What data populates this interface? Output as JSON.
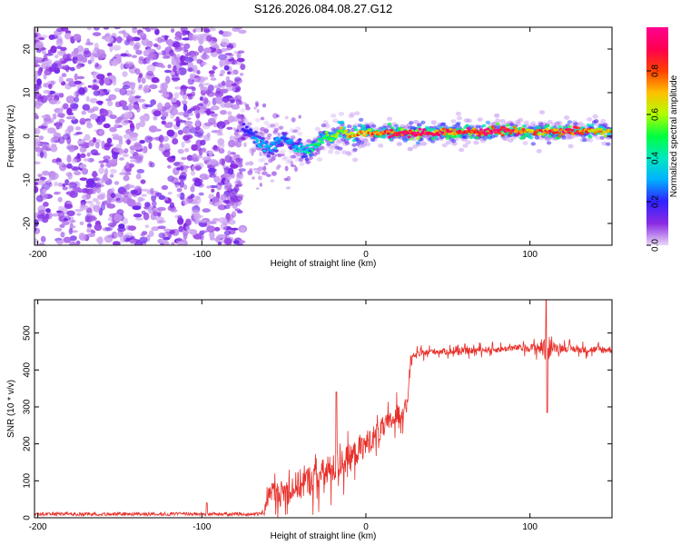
{
  "chart_data": [
    {
      "type": "heatmap",
      "title": "S126.2026.084.08.27.G12",
      "xlabel": "Height of straight line (km)",
      "ylabel": "Frequency (Hz)",
      "xlim": [
        -202,
        150
      ],
      "ylim": [
        -25,
        25
      ],
      "xticks": [
        -200,
        -100,
        0,
        100
      ],
      "yticks": [
        -20,
        -10,
        0,
        10,
        20
      ],
      "grid": false,
      "colorbar": {
        "label": "Normalized spectral amplitude",
        "range": [
          0.0,
          1.0
        ],
        "ticks": [
          0.0,
          0.2,
          0.4,
          0.6,
          0.8
        ],
        "tick_labels": [
          "0.0",
          "0.2",
          "0.4",
          "0.6",
          "0.8"
        ],
        "colors": [
          "#e8d8f8",
          "#8a2be2",
          "#3020ff",
          "#00b0ff",
          "#00e8c0",
          "#00ff40",
          "#b0ff00",
          "#ffc000",
          "#ff4000",
          "#ff0050",
          "#ff0090"
        ]
      },
      "noise_region_x": [
        -202,
        -75
      ],
      "signal_track": {
        "x": [
          -75,
          -70,
          -65,
          -60,
          -55,
          -50,
          -45,
          -40,
          -35,
          -30,
          -25,
          -20,
          -15,
          -10,
          -5,
          0,
          10,
          20,
          30,
          40,
          50,
          60,
          70,
          80,
          90,
          100,
          110,
          120,
          130,
          140,
          150
        ],
        "y": [
          2.0,
          1.0,
          -1.5,
          -2.5,
          -1.5,
          -0.5,
          -2.0,
          -3.0,
          -3.5,
          -1.5,
          0.0,
          -0.5,
          1.5,
          0.0,
          0.5,
          0.8,
          0.8,
          0.8,
          0.7,
          0.8,
          1.0,
          1.0,
          1.0,
          1.2,
          1.3,
          1.0,
          1.0,
          1.0,
          1.2,
          1.2,
          1.2
        ],
        "amplitude": [
          0.2,
          0.25,
          0.3,
          0.28,
          0.3,
          0.25,
          0.3,
          0.35,
          0.4,
          0.45,
          0.5,
          0.55,
          0.6,
          0.65,
          0.7,
          0.75,
          0.8,
          0.9,
          0.95,
          0.85,
          0.8,
          0.85,
          0.9,
          0.95,
          0.85,
          0.7,
          0.8,
          0.9,
          0.8,
          0.7,
          0.65
        ]
      }
    },
    {
      "type": "line",
      "xlabel": "Height of straight line (km)",
      "ylabel": "SNR (10 * v/v)",
      "xlim": [
        -202,
        150
      ],
      "ylim": [
        0,
        590
      ],
      "xticks": [
        -200,
        -100,
        0,
        100
      ],
      "yticks": [
        0,
        100,
        200,
        300,
        400,
        500
      ],
      "grid": false,
      "series": [
        {
          "color": "#e8302a",
          "x": [
            -202,
            -190,
            -180,
            -170,
            -160,
            -150,
            -140,
            -130,
            -120,
            -110,
            -100,
            -90,
            -80,
            -70,
            -65,
            -62,
            -58,
            -55,
            -50,
            -45,
            -40,
            -35,
            -30,
            -25,
            -20,
            -15,
            -10,
            -5,
            0,
            5,
            10,
            15,
            20,
            25,
            27,
            30,
            35,
            40,
            50,
            60,
            70,
            80,
            90,
            100,
            105,
            110,
            115,
            120,
            130,
            140,
            150
          ],
          "y": [
            10,
            10,
            10,
            10,
            10,
            10,
            10,
            10,
            10,
            10,
            10,
            10,
            10,
            10,
            10,
            15,
            80,
            60,
            70,
            80,
            90,
            100,
            110,
            120,
            130,
            150,
            160,
            180,
            200,
            220,
            240,
            260,
            280,
            300,
            420,
            440,
            445,
            450,
            450,
            450,
            455,
            455,
            460,
            460,
            460,
            460,
            460,
            460,
            455,
            455,
            455
          ],
          "noise": [
            8,
            8,
            8,
            8,
            8,
            8,
            8,
            8,
            8,
            8,
            8,
            8,
            8,
            8,
            8,
            20,
            40,
            50,
            50,
            55,
            60,
            60,
            60,
            60,
            60,
            55,
            55,
            50,
            50,
            45,
            45,
            40,
            40,
            35,
            25,
            15,
            12,
            12,
            12,
            12,
            12,
            12,
            12,
            15,
            20,
            60,
            18,
            15,
            14,
            14,
            14
          ]
        }
      ]
    }
  ]
}
